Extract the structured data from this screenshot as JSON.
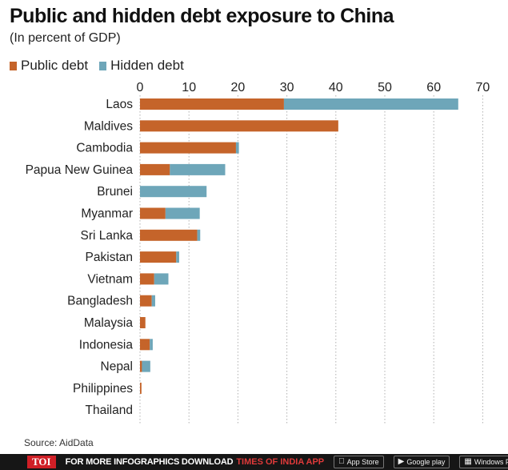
{
  "title": "Public and hidden debt exposure to China",
  "subtitle": "(In percent of GDP)",
  "source": "Source: AidData",
  "colors": {
    "public": "#c5642a",
    "hidden": "#6ea6b9",
    "grid": "#b0b0b0",
    "text": "#1a1a1a"
  },
  "footer": {
    "logo": "TOI",
    "promo": "FOR MORE  INFOGRAPHICS DOWNLOAD",
    "promo_brand": "TIMES OF INDIA  APP",
    "stores": [
      "App Store",
      "Google play",
      "Windows Phone"
    ]
  },
  "chart_data": {
    "type": "bar",
    "orientation": "horizontal",
    "stacked": true,
    "categories": [
      "Laos",
      "Maldives",
      "Cambodia",
      "Papua New Guinea",
      "Brunei",
      "Myanmar",
      "Sri Lanka",
      "Pakistan",
      "Vietnam",
      "Bangladesh",
      "Malaysia",
      "Indonesia",
      "Nepal",
      "Philippines",
      "Thailand"
    ],
    "series": [
      {
        "name": "Public debt",
        "color": "#c5642a",
        "values": [
          29.4,
          40.5,
          19.6,
          6.1,
          0,
          5.2,
          11.7,
          7.4,
          2.9,
          2.4,
          1.1,
          2.0,
          0.4,
          0.3,
          0.0
        ]
      },
      {
        "name": "Hidden debt",
        "color": "#6ea6b9",
        "values": [
          35.6,
          0,
          0.6,
          11.3,
          13.6,
          7.0,
          0.6,
          0.6,
          2.9,
          0.7,
          0,
          0.6,
          1.7,
          0,
          0
        ]
      }
    ],
    "xticks": [
      0,
      10,
      20,
      30,
      40,
      50,
      60,
      70
    ],
    "xlim": [
      0,
      70
    ],
    "grid": "vertical",
    "legend": "top-left"
  }
}
